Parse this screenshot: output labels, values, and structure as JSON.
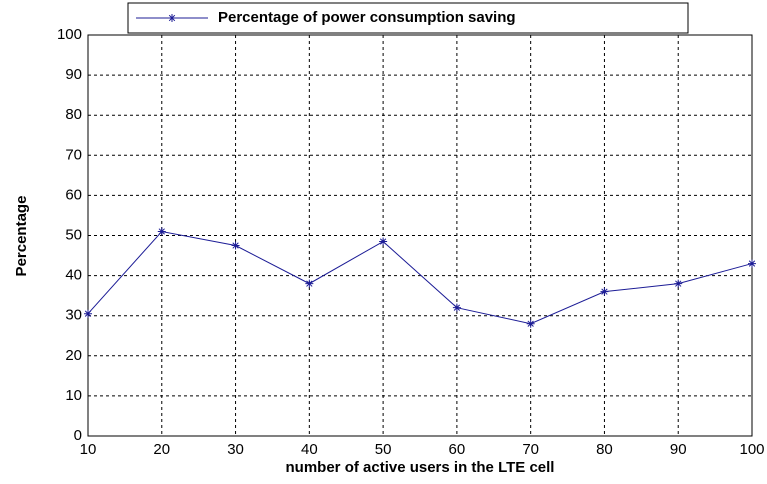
{
  "chart_data": {
    "type": "line",
    "x_label": "number of active users in the LTE cell",
    "y_label": "Percentage",
    "x": [
      10,
      20,
      30,
      40,
      50,
      60,
      70,
      80,
      90,
      100
    ],
    "series": [
      {
        "name": "Percentage of power consumption saving",
        "color": "#1c1c96",
        "marker": "*",
        "values": [
          30.5,
          51,
          47.5,
          38,
          48.5,
          32,
          28,
          36,
          38,
          43
        ]
      }
    ],
    "xlim": [
      10,
      100
    ],
    "xticks": [
      10,
      20,
      30,
      40,
      50,
      60,
      70,
      80,
      90,
      100
    ],
    "ylim": [
      0,
      100
    ],
    "yticks": [
      0,
      10,
      20,
      30,
      40,
      50,
      60,
      70,
      80,
      90,
      100
    ],
    "grid": true,
    "legend": "top"
  }
}
